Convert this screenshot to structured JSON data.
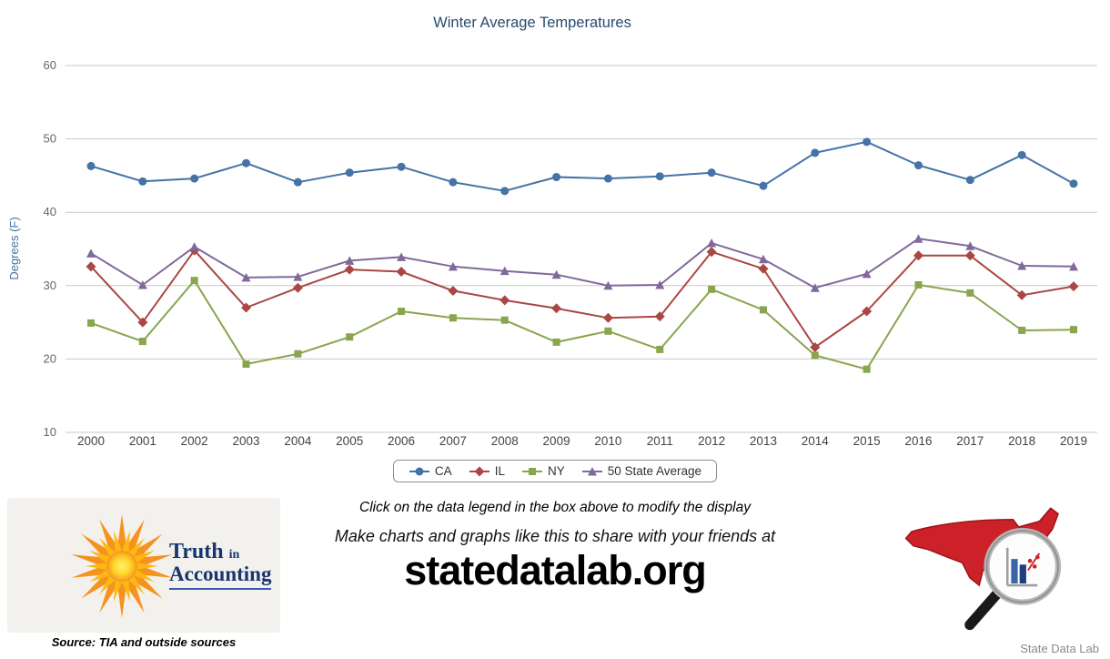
{
  "chart_data": {
    "type": "line",
    "title": "Winter Average Temperatures",
    "title_color": "#274b6d",
    "xlabel": "",
    "ylabel": "Degrees (F)",
    "ylabel_color": "#4572a7",
    "ylim": [
      10,
      60
    ],
    "yticks": [
      10,
      20,
      30,
      40,
      50,
      60
    ],
    "grid": true,
    "legend_position": "bottom",
    "x": [
      2000,
      2001,
      2002,
      2003,
      2004,
      2005,
      2006,
      2007,
      2008,
      2009,
      2010,
      2011,
      2012,
      2013,
      2014,
      2015,
      2016,
      2017,
      2018,
      2019
    ],
    "series": [
      {
        "name": "CA",
        "color": "#4572a7",
        "marker": "circle",
        "values": [
          46.3,
          44.2,
          44.6,
          46.7,
          44.1,
          45.4,
          46.2,
          44.1,
          42.9,
          44.8,
          44.6,
          44.9,
          45.4,
          43.6,
          48.1,
          49.6,
          46.4,
          44.4,
          47.8,
          43.9
        ]
      },
      {
        "name": "IL",
        "color": "#aa4643",
        "marker": "diamond",
        "values": [
          32.6,
          25.0,
          34.8,
          27.0,
          29.7,
          32.2,
          31.9,
          29.3,
          28.0,
          26.9,
          25.6,
          25.8,
          34.6,
          32.3,
          21.6,
          26.5,
          34.1,
          34.1,
          28.7,
          29.9
        ]
      },
      {
        "name": "NY",
        "color": "#89a54e",
        "marker": "square",
        "values": [
          24.9,
          22.4,
          30.7,
          19.3,
          20.7,
          23.0,
          26.5,
          25.6,
          25.3,
          22.3,
          23.8,
          21.3,
          29.5,
          26.7,
          20.5,
          18.6,
          30.1,
          29.0,
          23.9,
          24.0
        ]
      },
      {
        "name": "50 State Average",
        "color": "#80699b",
        "marker": "triangle",
        "values": [
          34.4,
          30.1,
          35.3,
          31.1,
          31.2,
          33.4,
          33.9,
          32.6,
          32.0,
          31.5,
          30.0,
          30.1,
          35.8,
          33.6,
          29.7,
          31.6,
          36.4,
          35.4,
          32.7,
          32.6
        ]
      }
    ]
  },
  "footer": {
    "hint": "Click on the data legend in the box above to modify the display",
    "promo": "Make charts and graphs like this to share with your friends at",
    "site": "statedatalab.org",
    "source": "Source: TIA and outside sources",
    "brand": "State Data Lab",
    "logo": {
      "truth": "Truth",
      "in_word": "in",
      "accounting": "Accounting"
    }
  },
  "icons": {
    "sun": "sun-burst-icon",
    "map": "usa-map-icon",
    "magnifier": "magnifying-glass-icon"
  }
}
